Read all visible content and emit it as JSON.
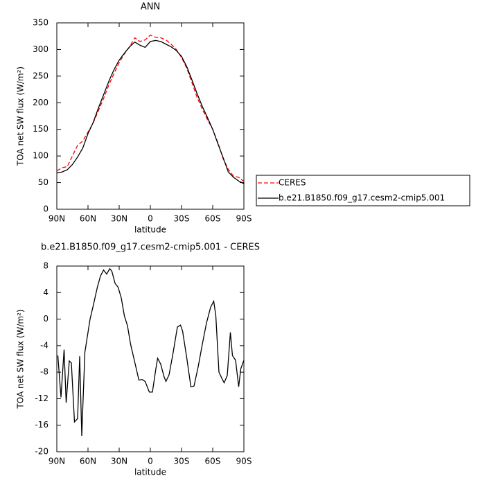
{
  "chart_data": [
    {
      "type": "line",
      "title": "ANN",
      "x_label": "latitude",
      "y_label": "TOA net SW flux (W/m²)",
      "x": [
        90,
        85,
        80,
        75,
        70,
        65,
        60,
        55,
        50,
        45,
        40,
        35,
        30,
        25,
        20,
        15,
        10,
        5,
        0,
        -5,
        -10,
        -15,
        -20,
        -25,
        -30,
        -35,
        -40,
        -45,
        -50,
        -55,
        -60,
        -65,
        -70,
        -75,
        -80,
        -85,
        -90
      ],
      "series": [
        {
          "name": "CERES",
          "color": "#ff0000",
          "line_style": "dashed",
          "values": [
            72,
            78,
            80,
            100,
            120,
            128,
            145,
            162,
            185,
            208,
            233,
            255,
            275,
            292,
            305,
            322,
            315,
            318,
            327,
            323,
            322,
            318,
            310,
            300,
            285,
            265,
            238,
            210,
            188,
            168,
            150,
            125,
            95,
            75,
            62,
            60,
            52
          ]
        },
        {
          "name": "b.e21.B1850.f09_g17.cesm2-cmip5.001",
          "color": "#000000",
          "line_style": "solid",
          "values": [
            68,
            70,
            74,
            84,
            98,
            115,
            142,
            163,
            190,
            215,
            240,
            262,
            280,
            293,
            305,
            314,
            308,
            304,
            315,
            317,
            315,
            310,
            305,
            298,
            287,
            268,
            243,
            217,
            193,
            172,
            150,
            123,
            97,
            70,
            60,
            53,
            48
          ]
        }
      ],
      "xlim": [
        90,
        -90
      ],
      "xticks": [
        {
          "value": 90,
          "label": "90N"
        },
        {
          "value": 60,
          "label": "60N"
        },
        {
          "value": 30,
          "label": "30N"
        },
        0,
        {
          "value": -30,
          "label": "30S"
        },
        {
          "value": -60,
          "label": "60S"
        },
        {
          "value": -90,
          "label": "90S"
        }
      ],
      "ylim": [
        0,
        350
      ],
      "yticks": [
        0,
        50,
        100,
        150,
        200,
        250,
        300,
        350
      ],
      "legend": "right"
    },
    {
      "type": "line",
      "title": "b.e21.B1850.f09_g17.cesm2-cmip5.001 - CERES",
      "x_label": "latitude",
      "y_label": "TOA net SW flux (W/m²)",
      "x": [
        89,
        86,
        83,
        81,
        78,
        76,
        73,
        70,
        68,
        66,
        63,
        61,
        58,
        55,
        51,
        48,
        45,
        42,
        39,
        37,
        34,
        31,
        28,
        25,
        22,
        19,
        15,
        11,
        8,
        5,
        1,
        -2,
        -5,
        -7,
        -10,
        -13,
        -15,
        -18,
        -22,
        -26,
        -29,
        -31,
        -35,
        -39,
        -42,
        -46,
        -50,
        -54,
        -58,
        -61,
        -63,
        -66,
        -69,
        -71,
        -74,
        -77,
        -79,
        -82,
        -85,
        -87,
        -90
      ],
      "values": [
        -5.5,
        -11.8,
        -4.6,
        -12.6,
        -6.3,
        -6.6,
        -15.5,
        -15,
        -5.6,
        -17.6,
        -5,
        -3,
        0,
        2,
        4.8,
        6.5,
        7.4,
        6.8,
        7.6,
        7.2,
        5.4,
        4.8,
        3.2,
        0.5,
        -1,
        -3.8,
        -6.5,
        -9.2,
        -9.1,
        -9.4,
        -11,
        -11,
        -7.8,
        -5.9,
        -6.8,
        -8.6,
        -9.4,
        -8.4,
        -5,
        -1.2,
        -0.9,
        -1.8,
        -5.8,
        -10.2,
        -10.1,
        -7.2,
        -3.8,
        -0.6,
        1.8,
        2.7,
        0.5,
        -8,
        -9,
        -9.6,
        -8.5,
        -2,
        -5.5,
        -6.2,
        -10.2,
        -7.5,
        -6.2
      ],
      "color": "#000000",
      "line_style": "solid",
      "xlim": [
        90,
        -90
      ],
      "xticks": [
        {
          "value": 90,
          "label": "90N"
        },
        {
          "value": 60,
          "label": "60N"
        },
        {
          "value": 30,
          "label": "30N"
        },
        0,
        {
          "value": -30,
          "label": "30S"
        },
        {
          "value": -60,
          "label": "60S"
        },
        {
          "value": -90,
          "label": "90S"
        }
      ],
      "ylim": [
        -20,
        8
      ],
      "yticks": [
        -20,
        -16,
        -12,
        -8,
        -4,
        0,
        4,
        8
      ]
    }
  ]
}
